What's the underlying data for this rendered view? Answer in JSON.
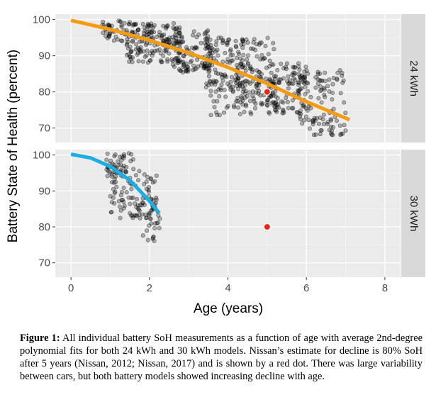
{
  "chart_data": {
    "type": "scatter",
    "xlabel": "Age (years)",
    "ylabel": "Battery State of Health (percent)",
    "x_ticks": [
      0,
      2,
      4,
      6,
      8
    ],
    "y_ticks": [
      70,
      80,
      90,
      100
    ],
    "xlim": [
      -0.4,
      8.4
    ],
    "facets": [
      {
        "strip": "24 kWh",
        "ylim": [
          66,
          101.5
        ],
        "fit_color": "#F39C12",
        "fit": {
          "x": [
            0,
            1,
            2,
            3,
            4,
            5,
            6,
            7.1
          ],
          "y": [
            99.8,
            97.3,
            94.3,
            90.8,
            86.8,
            82.3,
            77.3,
            72.3
          ]
        },
        "nissan_estimate": {
          "x": 5,
          "y": 80
        },
        "point_clusters": [
          {
            "x": [
              0.8,
              1.6
            ],
            "y": [
              94,
              100
            ],
            "n": 45
          },
          {
            "x": [
              1.4,
              2.8
            ],
            "y": [
              88,
              99
            ],
            "n": 170
          },
          {
            "x": [
              2.6,
              3.6
            ],
            "y": [
              85,
              97
            ],
            "n": 110
          },
          {
            "x": [
              3.4,
              4.4
            ],
            "y": [
              80,
              95
            ],
            "n": 100
          },
          {
            "x": [
              3.5,
              4.8
            ],
            "y": [
              73,
              84
            ],
            "n": 55
          },
          {
            "x": [
              4.2,
              5.2
            ],
            "y": [
              76,
              95
            ],
            "n": 100
          },
          {
            "x": [
              5.0,
              6.0
            ],
            "y": [
              74,
              88
            ],
            "n": 110
          },
          {
            "x": [
              5.8,
              7.0
            ],
            "y": [
              68,
              86
            ],
            "n": 110
          }
        ]
      },
      {
        "strip": "30 kWh",
        "ylim": [
          66,
          101.5
        ],
        "fit_color": "#1AAEE3",
        "fit": {
          "x": [
            0,
            0.5,
            1,
            1.5,
            2,
            2.25
          ],
          "y": [
            100.2,
            99.2,
            96.8,
            93.0,
            87.2,
            83.8
          ]
        },
        "nissan_estimate": {
          "x": 5,
          "y": 80
        },
        "point_clusters": [
          {
            "x": [
              0.9,
              1.6
            ],
            "y": [
              94,
              100.5
            ],
            "n": 45
          },
          {
            "x": [
              1.0,
              2.2
            ],
            "y": [
              82,
              96
            ],
            "n": 95
          },
          {
            "x": [
              1.8,
              2.3
            ],
            "y": [
              76,
              88
            ],
            "n": 30
          }
        ]
      }
    ]
  },
  "caption": {
    "label": "Figure 1:",
    "text": "All individual battery SoH measurements as a function of age with average 2nd-degree polynomial fits for both 24 kWh and 30 kWh models. Nissan’s estimate for decline is 80% SoH after 5 years (Nissan, 2012; Nissan, 2017) and is shown by a red dot. There was large variability between cars, but both battery models showed increasing decline with age."
  }
}
